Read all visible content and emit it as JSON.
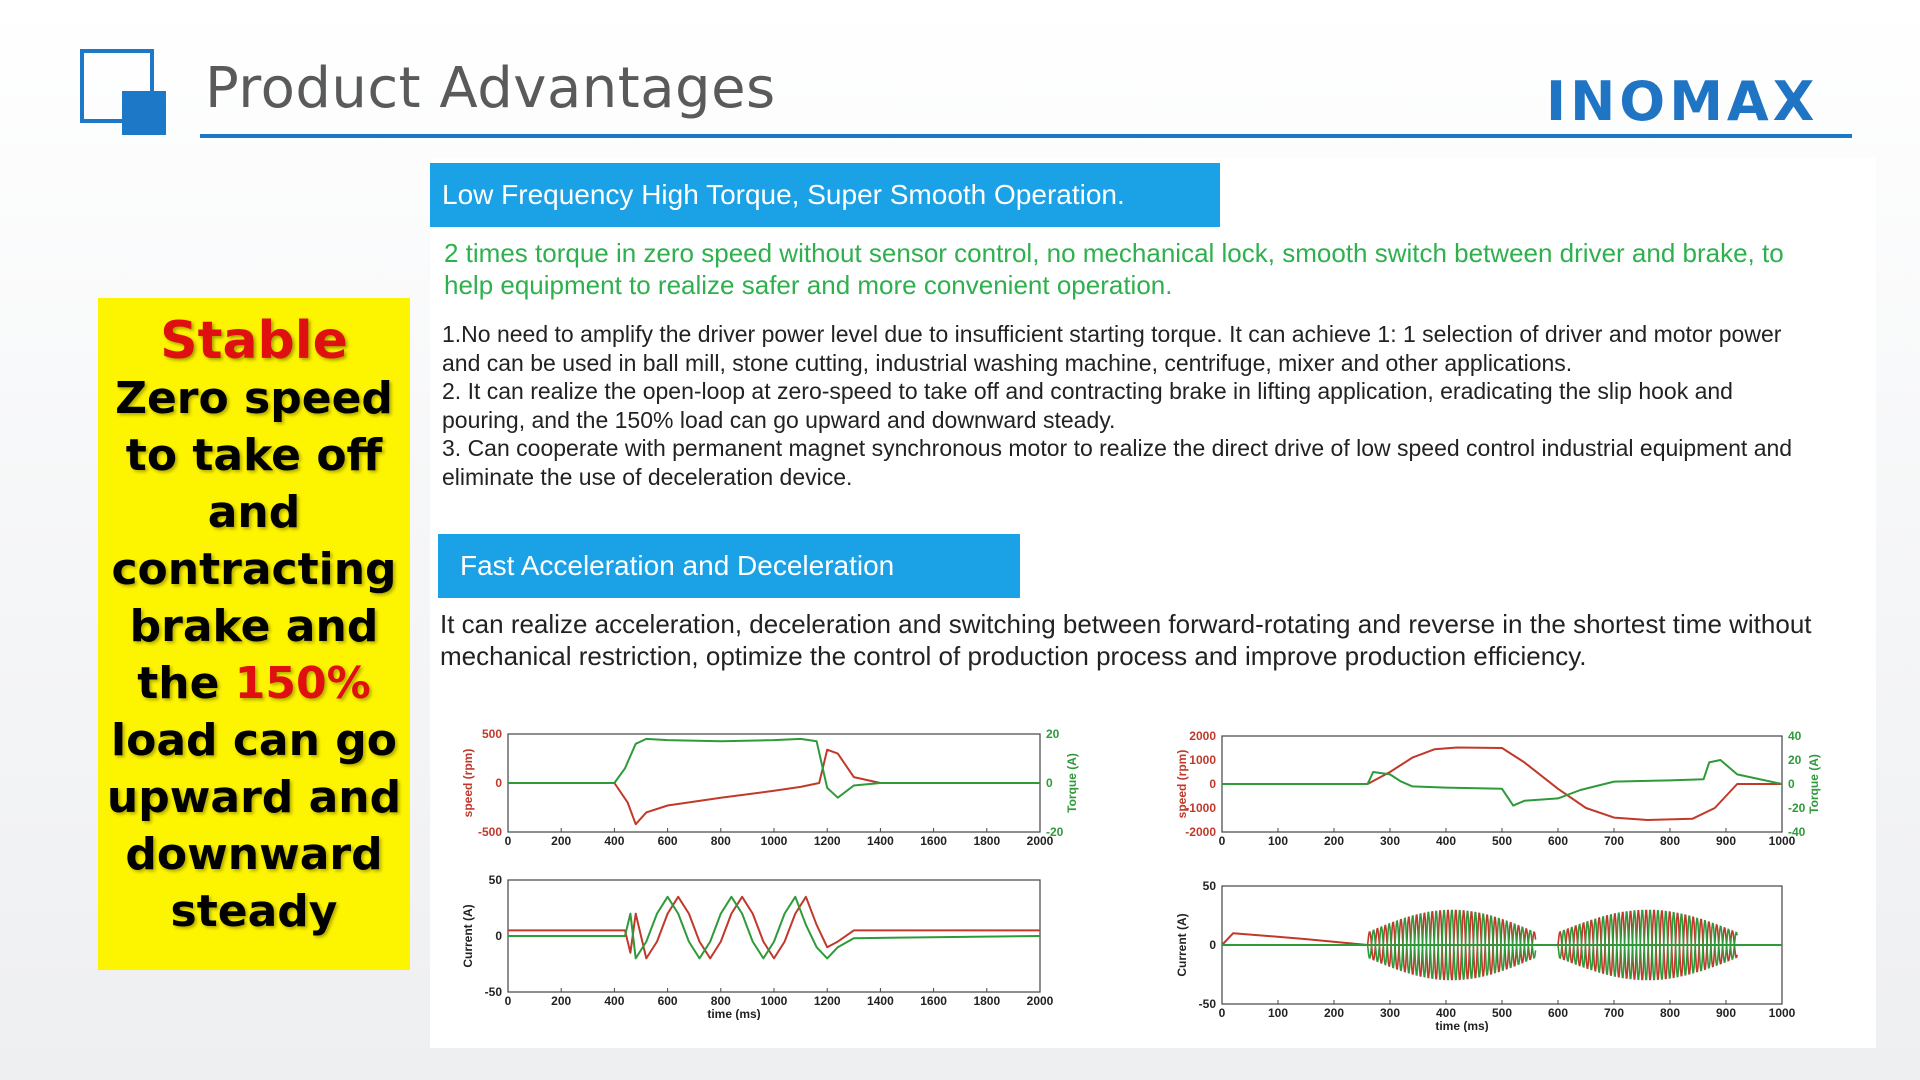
{
  "header": {
    "title": "Product Advantages",
    "brand": "INOMAX",
    "brand_color": "#1f74c4"
  },
  "sidebar_callout": {
    "highlight_word": "Stable",
    "line1": "Zero speed",
    "line2": "to take off",
    "line3": "and",
    "line4": "contracting",
    "line5": "brake and",
    "line6_prefix": "the ",
    "line6_highlight": "150%",
    "line7": "load can go",
    "line8": "upward and",
    "line9": "downward",
    "line10": "steady",
    "background": "#fdf400",
    "highlight_color": "#e01010"
  },
  "section1": {
    "heading": "Low Frequency High Torque, Super Smooth Operation.",
    "summary": "2 times torque in zero speed without sensor control, no mechanical lock, smooth switch between driver and brake, to help equipment to realize safer and more convenient operation.",
    "points": [
      "1.No need to amplify the driver power level due to insufficient starting torque. It can achieve 1: 1 selection of driver and motor power and can be used in ball mill, stone cutting, industrial washing machine, centrifuge, mixer and other applications.",
      "2. It can realize the open-loop at zero-speed to take off and contracting brake in lifting application, eradicating the slip hook and pouring, and the 150% load can go upward and downward steady.",
      "3. Can cooperate with permanent magnet synchronous motor to realize the direct drive of low speed control industrial equipment and eliminate the use of deceleration device."
    ]
  },
  "section2": {
    "heading": "Fast Acceleration and Deceleration",
    "text": "It can realize acceleration, deceleration and switching between forward-rotating and reverse in the shortest time without mechanical restriction, optimize the control of production process and improve production efficiency."
  },
  "chart_data": [
    {
      "type": "line",
      "xlabel": "",
      "ylabel": "speed (rpm)",
      "y2label": "Torque (A)",
      "xlim": [
        0,
        2000
      ],
      "ylim": [
        -500,
        500
      ],
      "y2lim": [
        -20,
        20
      ],
      "xticks": [
        "0",
        "200",
        "400",
        "600",
        "800",
        "1000",
        "1200",
        "1400",
        "1600",
        "1800",
        "2000"
      ],
      "yticks": [
        "500",
        "0",
        "-500"
      ],
      "y2ticks": [
        "20",
        "0",
        "-20"
      ],
      "series": [
        {
          "color": "#c0392b",
          "axis": "left",
          "x": [
            0,
            400,
            450,
            480,
            520,
            600,
            800,
            1000,
            1100,
            1170,
            1200,
            1240,
            1300,
            1400,
            2000
          ],
          "y": [
            0,
            0,
            -200,
            -420,
            -300,
            -230,
            -150,
            -80,
            -40,
            0,
            340,
            300,
            60,
            0,
            0
          ]
        },
        {
          "color": "#2e9a3a",
          "axis": "right",
          "x": [
            0,
            400,
            440,
            480,
            520,
            600,
            800,
            1000,
            1100,
            1160,
            1200,
            1240,
            1300,
            1400,
            2000
          ],
          "y": [
            0,
            0,
            6,
            16,
            18,
            17.5,
            17,
            17.5,
            18,
            17,
            -2,
            -6,
            -1,
            0,
            0
          ]
        }
      ]
    },
    {
      "type": "line",
      "xlabel": "time (ms)",
      "ylabel": "Current (A)",
      "xlim": [
        0,
        2000
      ],
      "ylim": [
        -50,
        50
      ],
      "xticks": [
        "0",
        "200",
        "400",
        "600",
        "800",
        "1000",
        "1200",
        "1400",
        "1600",
        "1800",
        "2000"
      ],
      "yticks": [
        "50",
        "0",
        "-50"
      ],
      "series": [
        {
          "color": "#c0392b",
          "x": [
            0,
            440,
            460,
            480,
            520,
            560,
            600,
            640,
            680,
            720,
            760,
            800,
            840,
            880,
            920,
            960,
            1000,
            1040,
            1080,
            1120,
            1160,
            1200,
            1240,
            1300,
            2000
          ],
          "y": [
            5,
            5,
            -15,
            20,
            -20,
            -5,
            20,
            35,
            20,
            -5,
            -20,
            -5,
            20,
            35,
            20,
            -5,
            -20,
            -5,
            20,
            35,
            10,
            -10,
            -5,
            5,
            5
          ]
        },
        {
          "color": "#2e9a3a",
          "x": [
            0,
            440,
            460,
            480,
            520,
            560,
            600,
            640,
            680,
            720,
            760,
            800,
            840,
            880,
            920,
            960,
            1000,
            1040,
            1080,
            1120,
            1160,
            1200,
            1240,
            1300,
            2000
          ],
          "y": [
            0,
            0,
            20,
            -20,
            -5,
            20,
            35,
            20,
            -5,
            -20,
            -5,
            20,
            35,
            20,
            -5,
            -20,
            -5,
            20,
            35,
            10,
            -10,
            -20,
            -10,
            -2,
            0
          ]
        }
      ]
    },
    {
      "type": "line",
      "xlabel": "",
      "ylabel": "speed (rpm)",
      "y2label": "Torque (A)",
      "xlim": [
        0,
        1000
      ],
      "ylim": [
        -2000,
        2000
      ],
      "y2lim": [
        -40,
        40
      ],
      "xticks": [
        "0",
        "100",
        "200",
        "300",
        "400",
        "500",
        "600",
        "700",
        "800",
        "900",
        "1000"
      ],
      "yticks": [
        "2000",
        "1000",
        "0",
        "-1000",
        "-2000"
      ],
      "y2ticks": [
        "40",
        "20",
        "0",
        "-20",
        "-40"
      ],
      "series": [
        {
          "color": "#c0392b",
          "axis": "left",
          "x": [
            0,
            260,
            300,
            340,
            380,
            420,
            500,
            540,
            600,
            650,
            700,
            760,
            840,
            880,
            920,
            1000
          ],
          "y": [
            0,
            0,
            500,
            1100,
            1450,
            1520,
            1500,
            900,
            -200,
            -1000,
            -1400,
            -1500,
            -1450,
            -1000,
            0,
            0
          ]
        },
        {
          "color": "#2e9a3a",
          "axis": "right",
          "x": [
            0,
            260,
            270,
            300,
            320,
            340,
            400,
            500,
            520,
            540,
            600,
            640,
            700,
            800,
            860,
            870,
            890,
            920,
            1000
          ],
          "y": [
            0,
            0,
            10,
            8,
            2,
            -2,
            -3,
            -4,
            -18,
            -14,
            -12,
            -5,
            2,
            3,
            4,
            18,
            20,
            8,
            0
          ]
        }
      ]
    },
    {
      "type": "line",
      "xlabel": "time (ms)",
      "ylabel": "Current (A)",
      "xlim": [
        0,
        1000
      ],
      "ylim": [
        -50,
        50
      ],
      "xticks": [
        "0",
        "100",
        "200",
        "300",
        "400",
        "500",
        "600",
        "700",
        "800",
        "900",
        "1000"
      ],
      "yticks": [
        "50",
        "0",
        "-50"
      ],
      "series": [
        {
          "color": "#c0392b",
          "x": [
            0,
            20,
            150,
            260,
            1000
          ],
          "y": [
            0,
            10,
            5,
            0,
            0
          ]
        },
        {
          "color": "#2e9a3a",
          "x": [
            0,
            260,
            1000
          ],
          "y": [
            0,
            0,
            0
          ]
        }
      ]
    }
  ]
}
